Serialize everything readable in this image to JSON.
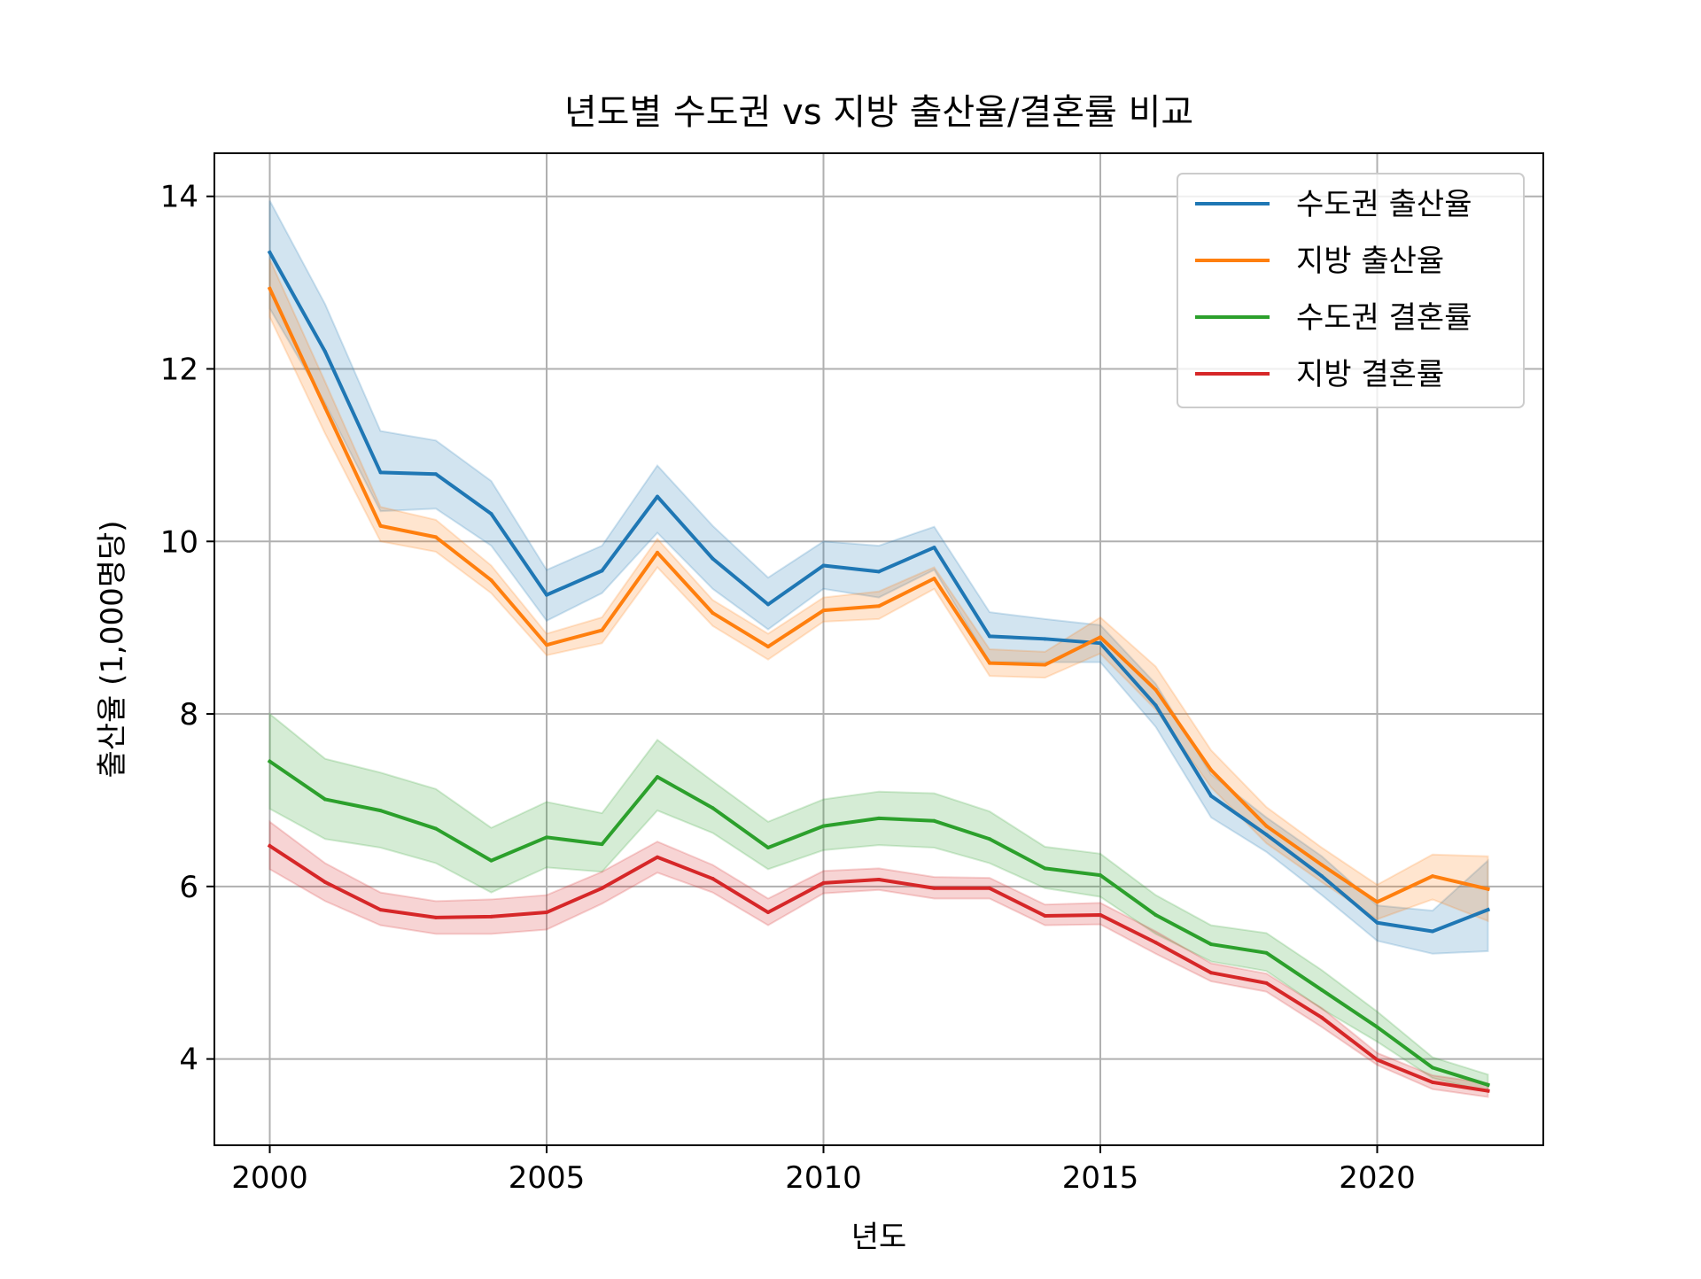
{
  "chart_data": {
    "type": "line",
    "title": "년도별 수도권 vs 지방 출산율/결혼률 비교",
    "xlabel": "년도",
    "ylabel": "출산율 (1,000명당)",
    "xlim": [
      1999,
      2023
    ],
    "ylim": [
      3,
      14.5
    ],
    "xticks": [
      2000,
      2005,
      2010,
      2015,
      2020
    ],
    "yticks": [
      4,
      6,
      8,
      10,
      12,
      14
    ],
    "grid": true,
    "legend_position": "top-right",
    "x": [
      2000,
      2001,
      2002,
      2003,
      2004,
      2005,
      2006,
      2007,
      2008,
      2009,
      2010,
      2011,
      2012,
      2013,
      2014,
      2015,
      2016,
      2017,
      2018,
      2019,
      2020,
      2021,
      2022
    ],
    "series": [
      {
        "name": "수도권 출산율",
        "color": "#1f77b4",
        "values": [
          13.35,
          12.2,
          10.8,
          10.78,
          10.32,
          9.38,
          9.66,
          10.52,
          9.8,
          9.27,
          9.72,
          9.65,
          9.93,
          8.9,
          8.87,
          8.82,
          8.1,
          7.05,
          6.6,
          6.12,
          5.58,
          5.48,
          5.73
        ],
        "lower": [
          12.7,
          11.6,
          10.35,
          10.38,
          9.95,
          9.08,
          9.4,
          10.1,
          9.45,
          8.98,
          9.45,
          9.35,
          9.67,
          8.6,
          8.6,
          8.6,
          7.85,
          6.8,
          6.4,
          5.9,
          5.37,
          5.22,
          5.25
        ],
        "upper": [
          13.95,
          12.75,
          11.28,
          11.17,
          10.7,
          9.67,
          9.95,
          10.88,
          10.18,
          9.58,
          10.0,
          9.95,
          10.17,
          9.18,
          9.1,
          9.03,
          8.35,
          7.3,
          6.8,
          6.35,
          5.78,
          5.72,
          6.3
        ]
      },
      {
        "name": "지방 출산율",
        "color": "#ff7f0e",
        "values": [
          12.93,
          11.55,
          10.18,
          10.05,
          9.55,
          8.8,
          8.97,
          9.87,
          9.17,
          8.78,
          9.2,
          9.25,
          9.57,
          8.59,
          8.57,
          8.89,
          8.28,
          7.35,
          6.7,
          6.25,
          5.82,
          6.12,
          5.97
        ],
        "lower": [
          12.6,
          11.25,
          10.0,
          9.88,
          9.4,
          8.68,
          8.82,
          9.7,
          9.02,
          8.63,
          9.07,
          9.1,
          9.45,
          8.44,
          8.42,
          8.7,
          8.05,
          7.15,
          6.5,
          6.05,
          5.62,
          5.85,
          5.6
        ],
        "upper": [
          13.27,
          11.85,
          10.4,
          10.25,
          9.72,
          8.93,
          9.12,
          10.03,
          9.32,
          8.93,
          9.35,
          9.42,
          9.7,
          8.75,
          8.72,
          9.12,
          8.55,
          7.58,
          6.92,
          6.45,
          6.02,
          6.37,
          6.35
        ]
      },
      {
        "name": "수도권 결혼률",
        "color": "#2ca02c",
        "values": [
          7.45,
          7.01,
          6.88,
          6.67,
          6.3,
          6.57,
          6.49,
          7.27,
          6.91,
          6.45,
          6.7,
          6.79,
          6.76,
          6.55,
          6.21,
          6.13,
          5.67,
          5.33,
          5.23,
          4.8,
          4.37,
          3.9,
          3.7
        ],
        "lower": [
          6.9,
          6.55,
          6.45,
          6.27,
          5.93,
          6.22,
          6.17,
          6.88,
          6.62,
          6.2,
          6.42,
          6.48,
          6.45,
          6.27,
          5.98,
          5.88,
          5.45,
          5.13,
          5.02,
          4.58,
          4.2,
          3.78,
          3.62
        ],
        "upper": [
          8.0,
          7.48,
          7.32,
          7.13,
          6.68,
          6.98,
          6.85,
          7.7,
          7.22,
          6.75,
          7.01,
          7.1,
          7.08,
          6.87,
          6.46,
          6.38,
          5.9,
          5.55,
          5.46,
          5.03,
          4.55,
          4.02,
          3.82
        ]
      },
      {
        "name": "지방 결혼률",
        "color": "#d62728",
        "values": [
          6.47,
          6.05,
          5.73,
          5.64,
          5.65,
          5.7,
          5.98,
          6.34,
          6.09,
          5.7,
          6.04,
          6.08,
          5.98,
          5.98,
          5.66,
          5.67,
          5.35,
          5.0,
          4.88,
          4.48,
          3.99,
          3.73,
          3.63
        ],
        "lower": [
          6.2,
          5.83,
          5.55,
          5.45,
          5.45,
          5.5,
          5.8,
          6.16,
          5.93,
          5.55,
          5.92,
          5.96,
          5.86,
          5.86,
          5.55,
          5.56,
          5.22,
          4.9,
          4.78,
          4.37,
          3.93,
          3.65,
          3.56
        ],
        "upper": [
          6.75,
          6.27,
          5.93,
          5.83,
          5.85,
          5.9,
          6.17,
          6.52,
          6.25,
          5.86,
          6.18,
          6.21,
          6.11,
          6.1,
          5.79,
          5.81,
          5.48,
          5.11,
          4.99,
          4.59,
          4.07,
          3.81,
          3.72
        ]
      }
    ]
  }
}
